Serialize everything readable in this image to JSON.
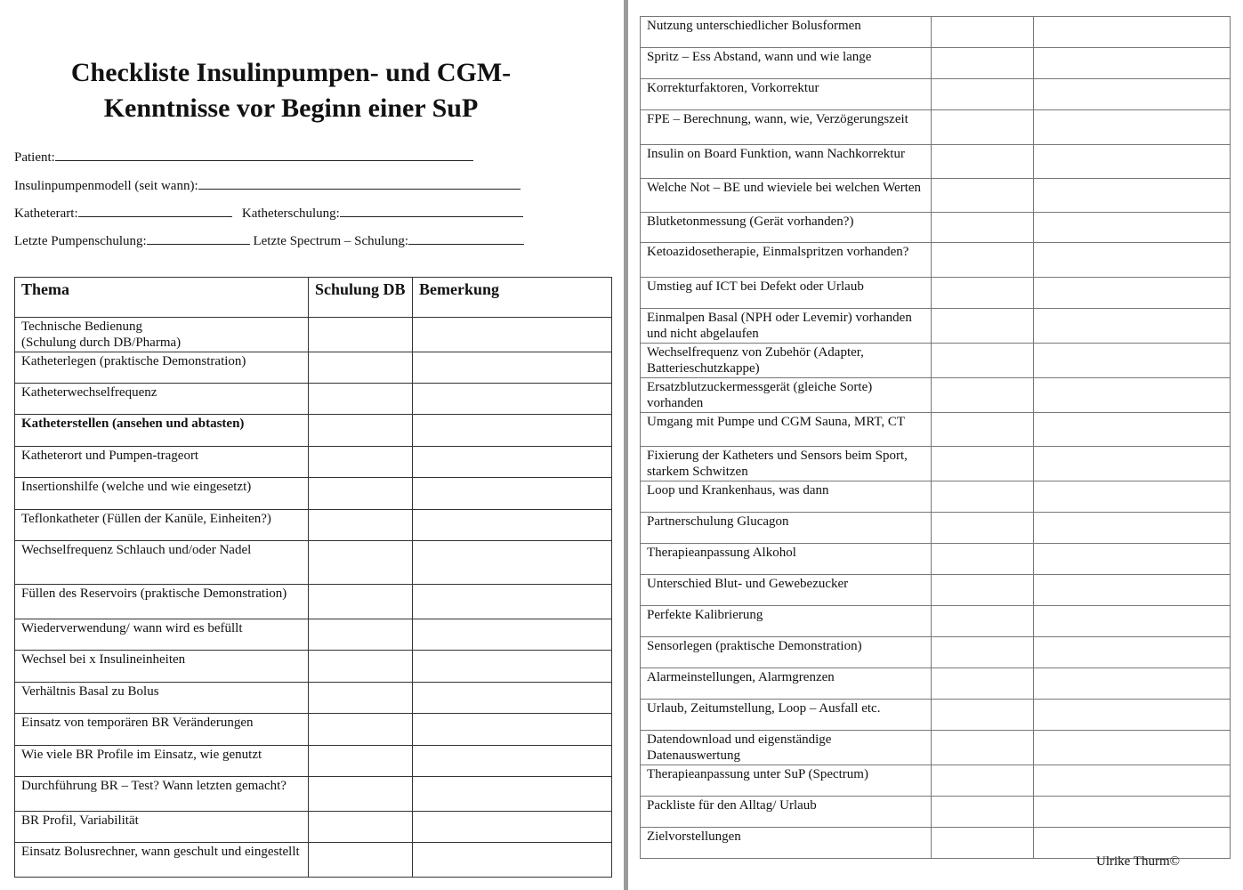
{
  "title": "Checkliste Insulinpumpen- und CGM-Kenntnisse vor Beginn einer SuP",
  "title_line1": "Checkliste Insulinpumpen- und CGM-",
  "title_line2": "Kenntnisse vor Beginn einer SuP",
  "fields": {
    "patient": "Patient:",
    "modell": "Insulinpumpenmodell (seit wann):",
    "katheterart": "Katheterart:",
    "katheterschulung": "Katheterschulung:",
    "pumpenschulung": "Letzte Pumpenschulung:",
    "spectrum": "Letzte Spectrum – Schulung:"
  },
  "table_headers": [
    "Thema",
    "Schulung DB",
    "Bemerkung"
  ],
  "left_rows": [
    {
      "t": "Technische Bedienung\n(Schulung durch DB/Pharma)",
      "h": 39
    },
    {
      "t": "Katheterlegen (praktische Demonstration)",
      "h": 35
    },
    {
      "t": "Katheterwechselfrequenz",
      "h": 35
    },
    {
      "t": "Katheterstellen (ansehen und abtasten)",
      "h": 36,
      "bold": true
    },
    {
      "t": "Katheterort und Pumpen-trageort",
      "h": 35
    },
    {
      "t": "Insertionshilfe (welche und wie eingesetzt)",
      "h": 36
    },
    {
      "t": "Teflonkatheter (Füllen der Kanüle, Einheiten?)",
      "h": 35
    },
    {
      "t": "Wechselfrequenz Schlauch und/oder Nadel",
      "h": 49
    },
    {
      "t": "Füllen des Reservoirs (praktische Demonstration)",
      "h": 39
    },
    {
      "t": "Wiederverwendung/ wann wird es befüllt",
      "h": 35
    },
    {
      "t": "Wechsel bei x Insulineinheiten",
      "h": 36
    },
    {
      "t": "Verhältnis Basal zu Bolus",
      "h": 35
    },
    {
      "t": "Einsatz von temporären BR Veränderungen",
      "h": 36
    },
    {
      "t": "Wie viele BR Profile im Einsatz, wie genutzt",
      "h": 35
    },
    {
      "t": "Durchführung BR – Test? Wann letzten gemacht?",
      "h": 39
    },
    {
      "t": "BR Profil, Variabilität",
      "h": 35
    },
    {
      "t": "Einsatz Bolusrechner, wann geschult und eingestellt",
      "h": 39
    }
  ],
  "right_rows": [
    {
      "t": "Nutzung unterschiedlicher Bolusformen",
      "h": 35
    },
    {
      "t": "Spritz – Ess Abstand, wann und wie lange",
      "h": 35
    },
    {
      "t": "Korrekturfaktoren, Vorkorrektur",
      "h": 35
    },
    {
      "t": "FPE – Berechnung, wann, wie, Verzögerungszeit",
      "h": 39
    },
    {
      "t": "Insulin on Board Funktion, wann Nachkorrektur",
      "h": 38
    },
    {
      "t": "Welche Not – BE und wieviele bei welchen Werten",
      "h": 38
    },
    {
      "t": "Blutketonmessung (Gerät vorhanden?)",
      "h": 34
    },
    {
      "t": "Ketoazidosetherapie, Einmalspritzen vorhanden?",
      "h": 39
    },
    {
      "t": "Umstieg auf ICT bei Defekt oder Urlaub",
      "h": 35
    },
    {
      "t": "Einmalpen Basal (NPH oder Levemir) vorhanden und nicht abgelaufen",
      "h": 38
    },
    {
      "t": "Wechselfrequenz von Zubehör (Adapter, Batterieschutzkappe)",
      "h": 38
    },
    {
      "t": "Ersatzblutzuckermessgerät (gleiche Sorte) vorhanden",
      "h": 38
    },
    {
      "t": "Umgang mit Pumpe und CGM Sauna, MRT, CT",
      "h": 38
    },
    {
      "t": "Fixierung der Katheters und Sensors beim Sport, starkem Schwitzen",
      "h": 38
    },
    {
      "t": "Loop und Krankenhaus, was dann",
      "h": 35
    },
    {
      "t": "Partnerschulung Glucagon",
      "h": 35
    },
    {
      "t": "Therapieanpassung Alkohol",
      "h": 35
    },
    {
      "t": "Unterschied Blut- und Gewebezucker",
      "h": 35
    },
    {
      "t": "Perfekte Kalibrierung",
      "h": 35
    },
    {
      "t": "Sensorlegen (praktische Demonstration)",
      "h": 35
    },
    {
      "t": "Alarmeinstellungen, Alarmgrenzen",
      "h": 35
    },
    {
      "t": "Urlaub, Zeitumstellung, Loop – Ausfall etc.",
      "h": 35
    },
    {
      "t": "Datendownload und  eigenständige Datenauswertung",
      "h": 38
    },
    {
      "t": "Therapieanpassung unter SuP (Spectrum)",
      "h": 35
    },
    {
      "t": "Packliste für den Alltag/ Urlaub",
      "h": 35
    },
    {
      "t": "Zielvorstellungen",
      "h": 35
    }
  ],
  "footer": "Ulrike Thurm©"
}
